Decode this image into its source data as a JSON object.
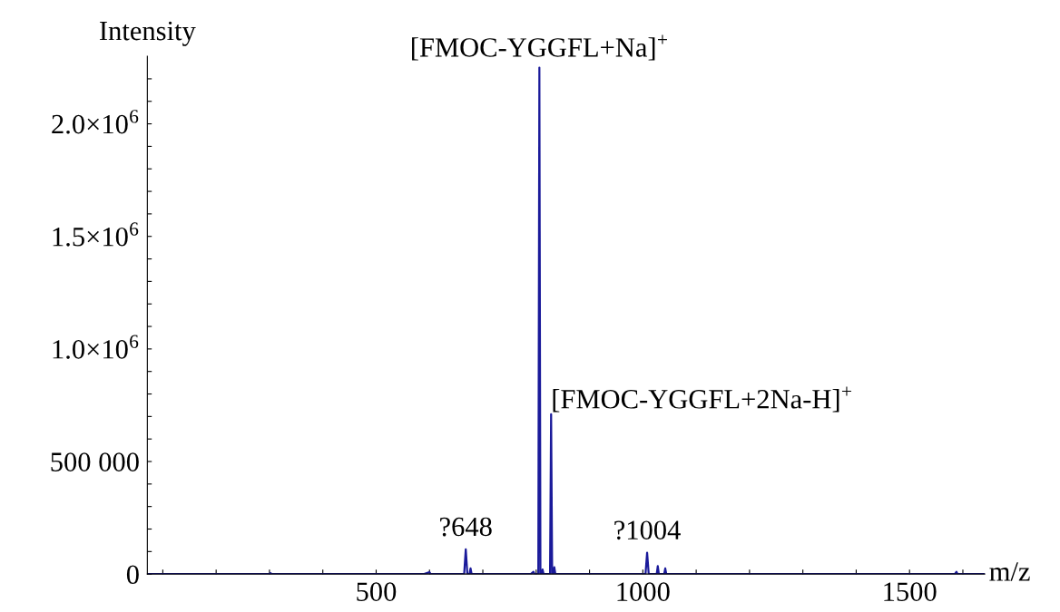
{
  "chart_data": {
    "type": "line",
    "xlabel": "m/z",
    "ylabel": "Intensity",
    "x": [
      71,
      300,
      302,
      304,
      590,
      600,
      602,
      665,
      668,
      671,
      675,
      677,
      679,
      790,
      795,
      797,
      804,
      806,
      808,
      810,
      812,
      814,
      826,
      828,
      830,
      832,
      834,
      836,
      1005,
      1008,
      1011,
      1026,
      1028,
      1030,
      1040,
      1042,
      1044,
      1585,
      1588,
      1590,
      1641
    ],
    "series": [
      {
        "color": "#1a1a9a",
        "values": [
          0,
          0,
          4000,
          0,
          0,
          8000,
          0,
          0,
          110000,
          0,
          0,
          25000,
          0,
          0,
          10000,
          0,
          0,
          2250000,
          0,
          0,
          20000,
          0,
          0,
          710000,
          0,
          0,
          30000,
          0,
          0,
          95000,
          0,
          0,
          35000,
          0,
          0,
          25000,
          0,
          0,
          10000,
          0,
          0
        ]
      }
    ],
    "xlim": [
      71,
      1641
    ],
    "ylim": [
      0,
      2300000
    ],
    "xticks": [
      {
        "value": 100,
        "label": null
      },
      {
        "value": 200,
        "label": null
      },
      {
        "value": 300,
        "label": null
      },
      {
        "value": 400,
        "label": null
      },
      500,
      {
        "value": 600,
        "label": null
      },
      {
        "value": 700,
        "label": null
      },
      {
        "value": 800,
        "label": null
      },
      {
        "value": 900,
        "label": null
      },
      1000,
      {
        "value": 1100,
        "label": null
      },
      {
        "value": 1200,
        "label": null
      },
      {
        "value": 1300,
        "label": null
      },
      {
        "value": 1400,
        "label": null
      },
      1500,
      {
        "value": 1600,
        "label": null
      }
    ],
    "yticks": [
      0,
      {
        "value": 100000,
        "label": null
      },
      {
        "value": 200000,
        "label": null
      },
      {
        "value": 300000,
        "label": null
      },
      {
        "value": 400000,
        "label": null
      },
      {
        "value": 500000,
        "label": "500 000"
      },
      {
        "value": 600000,
        "label": null
      },
      {
        "value": 700000,
        "label": null
      },
      {
        "value": 800000,
        "label": null
      },
      {
        "value": 900000,
        "label": null
      },
      {
        "value": 1000000,
        "label": "1.0×10$^{6}$"
      },
      {
        "value": 1100000,
        "label": null
      },
      {
        "value": 1200000,
        "label": null
      },
      {
        "value": 1300000,
        "label": null
      },
      {
        "value": 1400000,
        "label": null
      },
      {
        "value": 1500000,
        "label": "1.5×10$^{6}$"
      },
      {
        "value": 1600000,
        "label": null
      },
      {
        "value": 1700000,
        "label": null
      },
      {
        "value": 1800000,
        "label": null
      },
      {
        "value": 1900000,
        "label": null
      },
      {
        "value": 2000000,
        "label": "2.0×10$^{6}$"
      },
      {
        "value": 2100000,
        "label": null
      },
      {
        "value": 2200000,
        "label": null
      }
    ],
    "annotations": [
      {
        "text": "[FMOC-YGGFL+Na]$^{+}$",
        "x": 806,
        "y": 2250000
      },
      {
        "text": "[FMOC-YGGFL+2Na-H]$^{+}$",
        "x": 828,
        "y": 710000
      },
      {
        "text": "?648",
        "x": 668,
        "y": 110000
      },
      {
        "text": "?1004",
        "x": 1008,
        "y": 95000
      }
    ],
    "grid": false,
    "marker": "none",
    "line_style": "solid"
  }
}
